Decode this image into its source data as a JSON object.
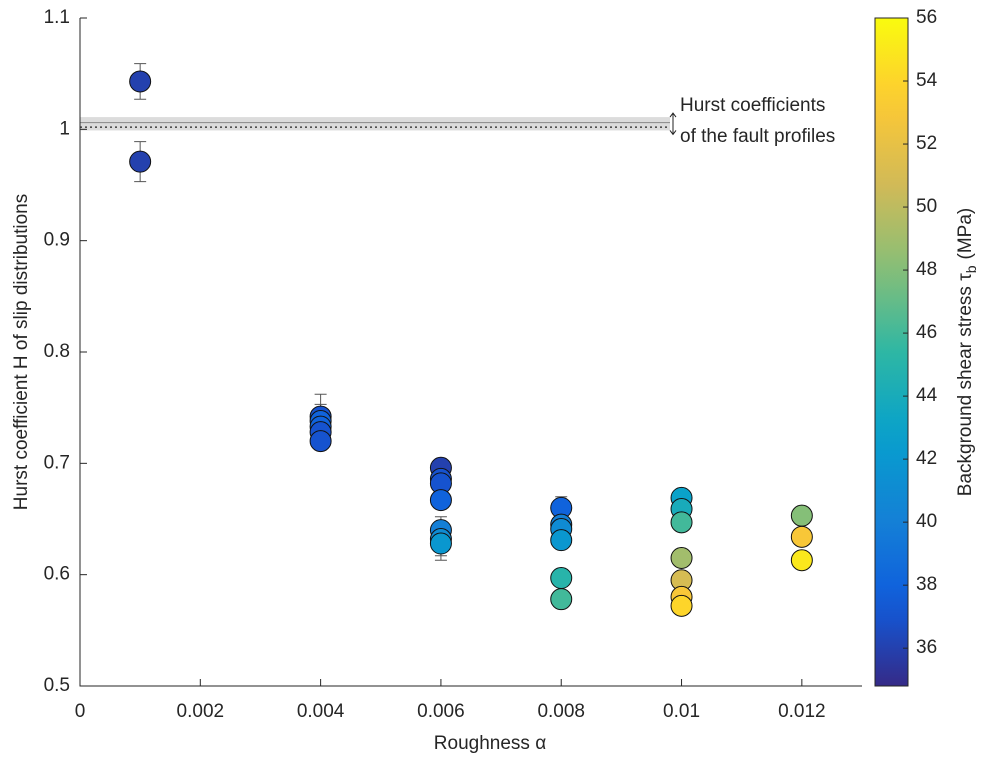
{
  "chart_data": {
    "type": "scatter",
    "x_label": "Roughness α",
    "y_label": "Hurst coefficient H of slip distributions",
    "xlim": [
      0,
      0.013
    ],
    "ylim": [
      0.5,
      1.1
    ],
    "xticks": [
      0,
      0.002,
      0.004,
      0.006,
      0.008,
      0.01,
      0.012
    ],
    "yticks": [
      0.5,
      0.6,
      0.7,
      0.8,
      0.9,
      1,
      1.1
    ],
    "colormap": "parula",
    "clim": [
      34.8,
      56
    ],
    "cticks": [
      36,
      38,
      40,
      42,
      44,
      46,
      48,
      50,
      52,
      54,
      56
    ],
    "colorbar_label": {
      "text": "Background shear stress τ",
      "sub": "b",
      "unit": "(MPa)"
    },
    "reference": {
      "band": [
        0.999,
        1.011
      ],
      "line": 1.006,
      "dotted": 1.002,
      "label": [
        "Hurst coefficients",
        "of the fault profiles"
      ]
    },
    "series": [
      {
        "x": [
          0.001,
          0.001,
          0.004,
          0.004,
          0.004,
          0.004,
          0.004,
          0.006,
          0.006,
          0.006,
          0.006,
          0.006,
          0.006,
          0.006,
          0.008,
          0.008,
          0.008,
          0.008,
          0.008,
          0.008,
          0.01,
          0.01,
          0.01,
          0.01,
          0.01,
          0.01,
          0.01,
          0.012,
          0.012,
          0.012
        ],
        "values": [
          1.043,
          0.971,
          0.742,
          0.738,
          0.733,
          0.728,
          0.72,
          0.696,
          0.686,
          0.682,
          0.667,
          0.64,
          0.632,
          0.628,
          0.66,
          0.645,
          0.641,
          0.631,
          0.597,
          0.578,
          0.669,
          0.659,
          0.647,
          0.615,
          0.595,
          0.58,
          0.572,
          0.653,
          0.634,
          0.613
        ],
        "errors": [
          0.016,
          0.018,
          0.02,
          0.015,
          0.012,
          0.01,
          0.008,
          0.008,
          0.008,
          0.008,
          0.008,
          0.012,
          0.015,
          0.015,
          0.01,
          0.006,
          0.006,
          0.006,
          0.005,
          0.005,
          0.005,
          0.005,
          0.005,
          0.005,
          0.005,
          0.005,
          0.005,
          0.005,
          0.005,
          0.005
        ],
        "c": [
          36,
          36,
          37,
          38,
          38,
          37,
          37,
          36,
          37,
          37,
          38,
          40,
          41,
          42,
          38,
          40,
          41,
          42,
          45,
          46,
          43,
          44,
          46,
          49,
          51,
          53,
          54,
          48,
          53,
          55
        ]
      }
    ]
  }
}
